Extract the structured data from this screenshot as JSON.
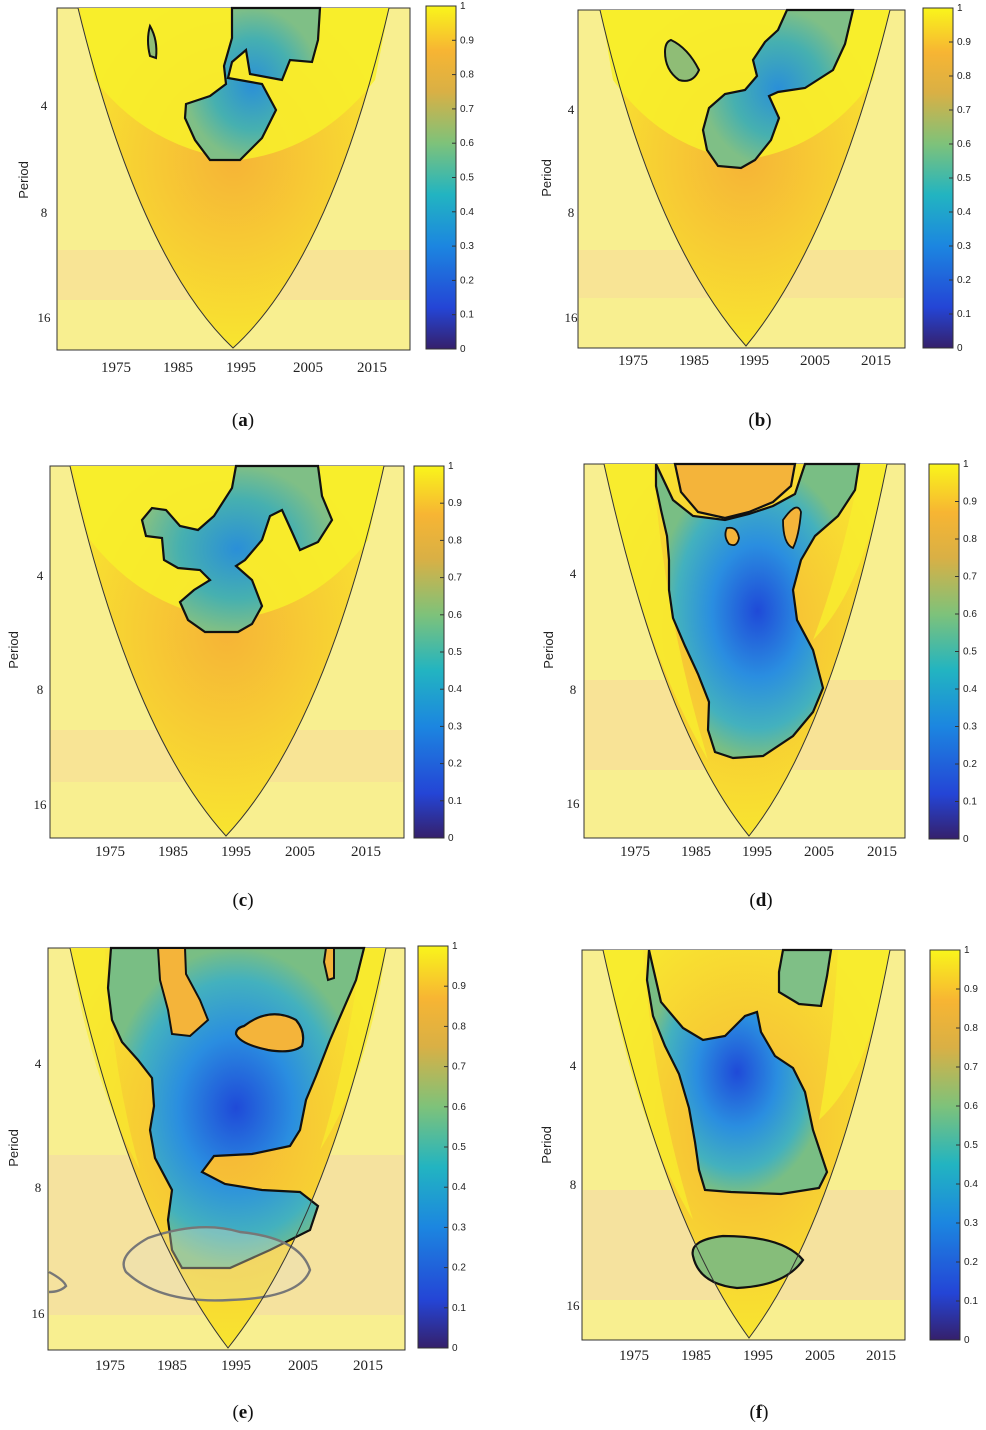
{
  "chart_data": [
    {
      "type": "heatmap",
      "panel": "a",
      "ylabel": "Period",
      "yticks": [
        "4",
        "8",
        "16"
      ],
      "xticks": [
        "1975",
        "1985",
        "1995",
        "2005",
        "2015"
      ],
      "colorbar_ticks": [
        "1",
        "0.9",
        "0.8",
        "0.7",
        "0.6",
        "0.5",
        "0.4",
        "0.3",
        "0.2",
        "0.1",
        "0"
      ]
    },
    {
      "type": "heatmap",
      "panel": "b",
      "ylabel": "Period",
      "yticks": [
        "4",
        "8",
        "16"
      ],
      "xticks": [
        "1975",
        "1985",
        "1995",
        "2005",
        "2015"
      ],
      "colorbar_ticks": [
        "1",
        "0.9",
        "0.8",
        "0.7",
        "0.6",
        "0.5",
        "0.4",
        "0.3",
        "0.2",
        "0.1",
        "0"
      ]
    },
    {
      "type": "heatmap",
      "panel": "c",
      "ylabel": "Period",
      "yticks": [
        "4",
        "8",
        "16"
      ],
      "xticks": [
        "1975",
        "1985",
        "1995",
        "2005",
        "2015"
      ],
      "colorbar_ticks": [
        "1",
        "0.9",
        "0.8",
        "0.7",
        "0.6",
        "0.5",
        "0.4",
        "0.3",
        "0.2",
        "0.1",
        "0"
      ]
    },
    {
      "type": "heatmap",
      "panel": "d",
      "ylabel": "Period",
      "yticks": [
        "4",
        "8",
        "16"
      ],
      "xticks": [
        "1975",
        "1985",
        "1995",
        "2005",
        "2015"
      ],
      "colorbar_ticks": [
        "1",
        "0.9",
        "0.8",
        "0.7",
        "0.6",
        "0.5",
        "0.4",
        "0.3",
        "0.2",
        "0.1",
        "0"
      ]
    },
    {
      "type": "heatmap",
      "panel": "e",
      "ylabel": "Period",
      "yticks": [
        "4",
        "8",
        "16"
      ],
      "xticks": [
        "1975",
        "1985",
        "1995",
        "2005",
        "2015"
      ],
      "colorbar_ticks": [
        "1",
        "0.9",
        "0.8",
        "0.7",
        "0.6",
        "0.5",
        "0.4",
        "0.3",
        "0.2",
        "0.1",
        "0"
      ]
    },
    {
      "type": "heatmap",
      "panel": "f",
      "ylabel": "Period",
      "yticks": [
        "4",
        "8",
        "16"
      ],
      "xticks": [
        "1975",
        "1985",
        "1995",
        "2005",
        "2015"
      ],
      "colorbar_ticks": [
        "1",
        "0.9",
        "0.8",
        "0.7",
        "0.6",
        "0.5",
        "0.4",
        "0.3",
        "0.2",
        "0.1",
        "0"
      ]
    }
  ],
  "captions": {
    "a": "a",
    "b": "b",
    "c": "c",
    "d": "d",
    "e": "e",
    "f": "f"
  },
  "colors": {
    "high": "#f9f028",
    "mid": "#f3a73a",
    "low": "#2fa0cf",
    "deep": "#2445d6",
    "bottom": "#35206b"
  }
}
